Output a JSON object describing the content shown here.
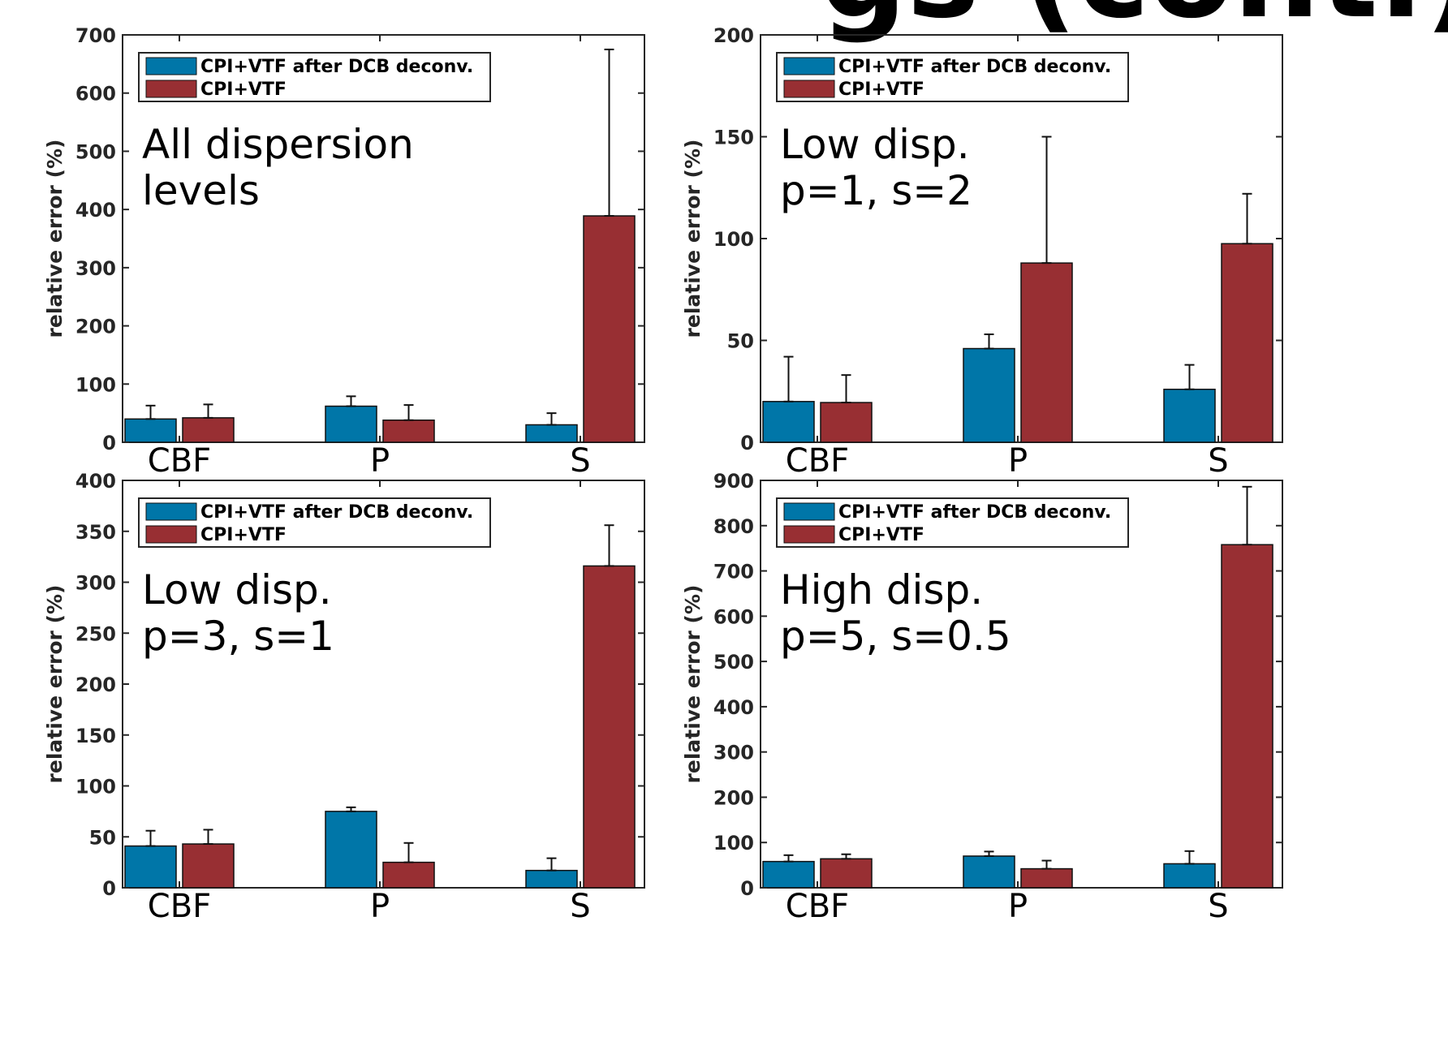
{
  "colors": {
    "series_1": "#0076a8",
    "series_2": "#982f33",
    "axis": "#262626",
    "background": "#ffffff"
  },
  "banner_fragment": "gs (cont.)",
  "chart_data": [
    {
      "type": "bar",
      "panel": "top-left",
      "annotation": [
        "All dispersion",
        "levels"
      ],
      "categories": [
        "CBF",
        "P",
        "S"
      ],
      "series": [
        {
          "name": "CPI+VTF after DCB deconv.",
          "values": [
            40,
            62,
            30
          ],
          "errors": [
            23,
            17,
            20
          ]
        },
        {
          "name": "CPI+VTF",
          "values": [
            42,
            38,
            389
          ],
          "errors": [
            23,
            26,
            286
          ]
        }
      ],
      "ylabel": "relative error (%)",
      "ylim": [
        0,
        700
      ],
      "yticks": [
        0,
        100,
        200,
        300,
        400,
        500,
        600,
        700
      ],
      "legend_position": "top-left",
      "grid": false
    },
    {
      "type": "bar",
      "panel": "top-right",
      "annotation": [
        "Low disp.",
        "p=1, s=2"
      ],
      "categories": [
        "CBF",
        "P",
        "S"
      ],
      "series": [
        {
          "name": "CPI+VTF after DCB deconv.",
          "values": [
            20,
            46,
            26
          ],
          "errors": [
            22,
            7,
            12
          ]
        },
        {
          "name": "CPI+VTF",
          "values": [
            19.5,
            88,
            97.5
          ],
          "errors": [
            13.5,
            62,
            24.5
          ]
        }
      ],
      "ylabel": "relative error (%)",
      "ylim": [
        0,
        200
      ],
      "yticks": [
        0,
        50,
        100,
        150,
        200
      ],
      "legend_position": "top-left",
      "grid": false
    },
    {
      "type": "bar",
      "panel": "bottom-left",
      "annotation": [
        "Low disp.",
        "p=3, s=1"
      ],
      "categories": [
        "CBF",
        "P",
        "S"
      ],
      "series": [
        {
          "name": "CPI+VTF after DCB deconv.",
          "values": [
            41,
            75,
            17
          ],
          "errors": [
            15,
            4,
            12
          ]
        },
        {
          "name": "CPI+VTF",
          "values": [
            43,
            25,
            316
          ],
          "errors": [
            14,
            19,
            40
          ]
        }
      ],
      "ylabel": "relative error (%)",
      "ylim": [
        0,
        400
      ],
      "yticks": [
        0,
        50,
        100,
        150,
        200,
        250,
        300,
        350,
        400
      ],
      "legend_position": "top-left",
      "grid": false
    },
    {
      "type": "bar",
      "panel": "bottom-right",
      "annotation": [
        "High disp.",
        "p=5, s=0.5"
      ],
      "categories": [
        "CBF",
        "P",
        "S"
      ],
      "series": [
        {
          "name": "CPI+VTF after DCB deconv.",
          "values": [
            58,
            70,
            53
          ],
          "errors": [
            14,
            10,
            28
          ]
        },
        {
          "name": "CPI+VTF",
          "values": [
            64,
            42,
            758
          ],
          "errors": [
            10,
            18,
            128
          ]
        }
      ],
      "ylabel": "relative error (%)",
      "ylim": [
        0,
        900
      ],
      "yticks": [
        0,
        100,
        200,
        300,
        400,
        500,
        600,
        700,
        800,
        900
      ],
      "legend_position": "top-left",
      "grid": false
    }
  ]
}
